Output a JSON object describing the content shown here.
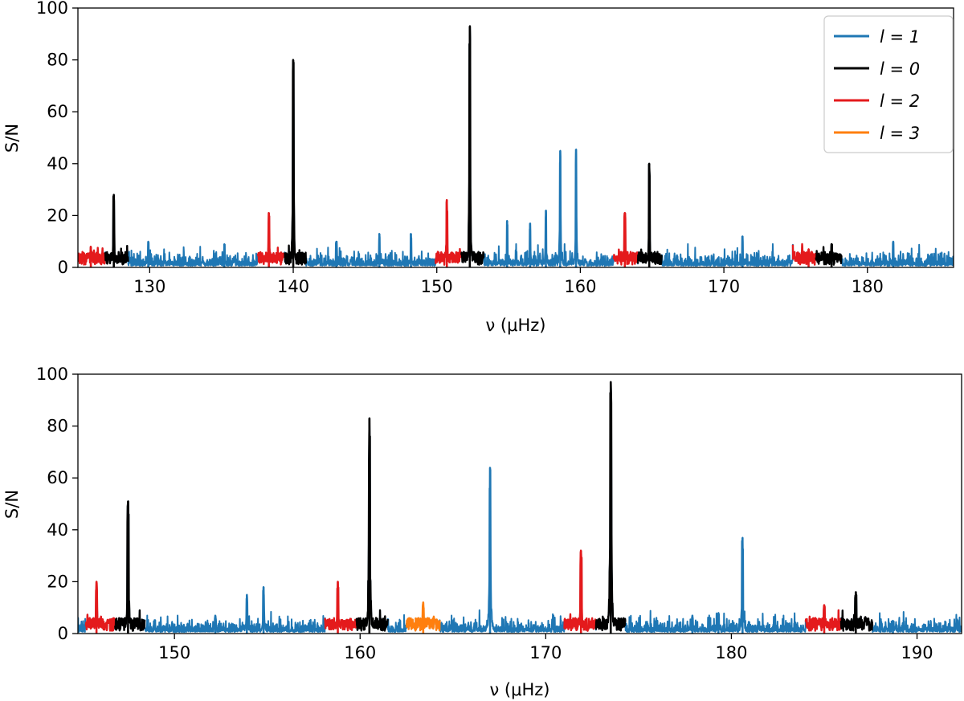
{
  "chart_data": [
    {
      "type": "line",
      "panel": "top",
      "title": "",
      "xlabel": "ν (μHz)",
      "ylabel": "S/N",
      "xlim": [
        125,
        186
      ],
      "ylim": [
        0,
        100
      ],
      "xticks": [
        130,
        140,
        150,
        160,
        170,
        180
      ],
      "yticks": [
        0,
        20,
        40,
        60,
        80,
        100
      ],
      "grid": false,
      "legend_position": "top-right",
      "legend": [
        {
          "label": "l = 1",
          "color": "#1f77b4"
        },
        {
          "label": "l = 0",
          "color": "#000000"
        },
        {
          "label": "l = 2",
          "color": "#e41a1c"
        },
        {
          "label": "l = 3",
          "color": "#ff7f0e"
        }
      ],
      "background": {
        "color": "#1f77b4",
        "noise_level": 2.5
      },
      "peaks": [
        {
          "degree": "l = 1",
          "x": 129.9,
          "y": 10
        },
        {
          "degree": "l = 1",
          "x": 135.2,
          "y": 9
        },
        {
          "degree": "l = 1",
          "x": 143.0,
          "y": 10
        },
        {
          "degree": "l = 1",
          "x": 146.0,
          "y": 13
        },
        {
          "degree": "l = 1",
          "x": 148.2,
          "y": 13
        },
        {
          "degree": "l = 1",
          "x": 154.9,
          "y": 18
        },
        {
          "degree": "l = 1",
          "x": 156.5,
          "y": 17
        },
        {
          "degree": "l = 1",
          "x": 157.6,
          "y": 22
        },
        {
          "degree": "l = 1",
          "x": 158.6,
          "y": 45
        },
        {
          "degree": "l = 1",
          "x": 159.7,
          "y": 45.5
        },
        {
          "degree": "l = 1",
          "x": 171.3,
          "y": 12
        },
        {
          "degree": "l = 1",
          "x": 181.8,
          "y": 10
        },
        {
          "degree": "l = 2",
          "x": 125.9,
          "y": 8
        },
        {
          "degree": "l = 0",
          "x": 127.5,
          "y": 28
        },
        {
          "degree": "l = 2",
          "x": 138.3,
          "y": 21
        },
        {
          "degree": "l = 0",
          "x": 140.0,
          "y": 80
        },
        {
          "degree": "l = 2",
          "x": 150.7,
          "y": 26
        },
        {
          "degree": "l = 0",
          "x": 152.3,
          "y": 93
        },
        {
          "degree": "l = 2",
          "x": 163.1,
          "y": 21
        },
        {
          "degree": "l = 0",
          "x": 164.8,
          "y": 40
        },
        {
          "degree": "l = 2",
          "x": 175.9,
          "y": 7
        },
        {
          "degree": "l = 0",
          "x": 177.5,
          "y": 9
        }
      ],
      "segments": [
        {
          "degree": "l = 2",
          "x": [
            125.0,
            126.9
          ]
        },
        {
          "degree": "l = 0",
          "x": [
            126.9,
            128.5
          ]
        },
        {
          "degree": "l = 2",
          "x": [
            137.5,
            139.4
          ]
        },
        {
          "degree": "l = 0",
          "x": [
            139.4,
            140.9
          ]
        },
        {
          "degree": "l = 2",
          "x": [
            149.9,
            151.7
          ]
        },
        {
          "degree": "l = 0",
          "x": [
            151.7,
            153.3
          ]
        },
        {
          "degree": "l = 2",
          "x": [
            162.3,
            164.0
          ]
        },
        {
          "degree": "l = 0",
          "x": [
            164.0,
            165.7
          ]
        },
        {
          "degree": "l = 2",
          "x": [
            174.8,
            176.4
          ]
        },
        {
          "degree": "l = 0",
          "x": [
            176.4,
            178.2
          ]
        }
      ]
    },
    {
      "type": "line",
      "panel": "bottom",
      "title": "",
      "xlabel": "ν (μHz)",
      "ylabel": "S/N",
      "xlim": [
        144.8,
        192.4
      ],
      "ylim": [
        0,
        100
      ],
      "xticks": [
        150,
        160,
        170,
        180,
        190
      ],
      "yticks": [
        0,
        20,
        40,
        60,
        80,
        100
      ],
      "grid": false,
      "background": {
        "color": "#1f77b4",
        "noise_level": 2.5
      },
      "peaks": [
        {
          "degree": "l = 1",
          "x": 152.2,
          "y": 7
        },
        {
          "degree": "l = 1",
          "x": 153.9,
          "y": 15
        },
        {
          "degree": "l = 1",
          "x": 154.8,
          "y": 18
        },
        {
          "degree": "l = 1",
          "x": 167.0,
          "y": 64
        },
        {
          "degree": "l = 1",
          "x": 177.9,
          "y": 7
        },
        {
          "degree": "l = 1",
          "x": 179.3,
          "y": 8
        },
        {
          "degree": "l = 1",
          "x": 180.6,
          "y": 37
        },
        {
          "degree": "l = 1",
          "x": 188.7,
          "y": 5
        },
        {
          "degree": "l = 2",
          "x": 145.8,
          "y": 20
        },
        {
          "degree": "l = 0",
          "x": 147.5,
          "y": 51
        },
        {
          "degree": "l = 2",
          "x": 158.8,
          "y": 20
        },
        {
          "degree": "l = 0",
          "x": 160.5,
          "y": 83
        },
        {
          "degree": "l = 3",
          "x": 163.4,
          "y": 12
        },
        {
          "degree": "l = 2",
          "x": 171.9,
          "y": 32
        },
        {
          "degree": "l = 0",
          "x": 173.5,
          "y": 97
        },
        {
          "degree": "l = 2",
          "x": 185.0,
          "y": 11
        },
        {
          "degree": "l = 0",
          "x": 186.7,
          "y": 16
        }
      ],
      "segments": [
        {
          "degree": "l = 2",
          "x": [
            145.2,
            146.8
          ]
        },
        {
          "degree": "l = 0",
          "x": [
            146.8,
            148.4
          ]
        },
        {
          "degree": "l = 2",
          "x": [
            158.1,
            159.8
          ]
        },
        {
          "degree": "l = 0",
          "x": [
            159.8,
            161.5
          ]
        },
        {
          "degree": "l = 3",
          "x": [
            162.5,
            164.3
          ]
        },
        {
          "degree": "l = 2",
          "x": [
            171.0,
            172.7
          ]
        },
        {
          "degree": "l = 0",
          "x": [
            172.7,
            174.3
          ]
        },
        {
          "degree": "l = 2",
          "x": [
            184.0,
            185.9
          ]
        },
        {
          "degree": "l = 0",
          "x": [
            185.9,
            187.6
          ]
        }
      ]
    }
  ]
}
